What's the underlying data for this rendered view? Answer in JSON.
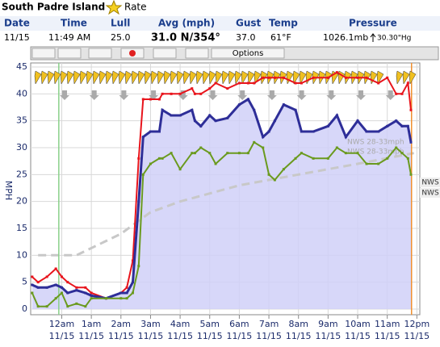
{
  "header": {
    "title": "South Padre Island",
    "rate": "Rate"
  },
  "table": {
    "headers": [
      "Date",
      "Time",
      "Lull",
      "Avg (mph)",
      "Gust",
      "Temp",
      "Pressure"
    ],
    "values": [
      "11/15",
      "11:49 AM",
      "25.0",
      "31.0 N/354°",
      "37.0",
      "61°F",
      "1026.1mb",
      "30.30\"Hg"
    ]
  },
  "toolbar": {
    "options": "Options"
  },
  "chart_data": {
    "type": "line",
    "ylabel": "MPH",
    "x": [
      -1.0,
      -0.8,
      -0.5,
      -0.2,
      0,
      0.2,
      0.5,
      0.8,
      1.0,
      1.5,
      2.0,
      2.2,
      2.4,
      2.6,
      2.75,
      3.0,
      3.3,
      3.4,
      3.7,
      4.0,
      4.4,
      4.5,
      4.7,
      5.0,
      5.2,
      5.6,
      6.0,
      6.3,
      6.5,
      6.8,
      7.0,
      7.2,
      7.5,
      7.9,
      8.1,
      8.5,
      9.0,
      9.3,
      9.6,
      10.0,
      10.3,
      10.7,
      11.0,
      11.3,
      11.5,
      11.7,
      11.8
    ],
    "series": [
      {
        "name": "Gust",
        "color": "#e8141c",
        "values": [
          6,
          5,
          6,
          7.5,
          6,
          5,
          4,
          4,
          3,
          2,
          3,
          4,
          9,
          28,
          39,
          39,
          39,
          40,
          40,
          40,
          41,
          40,
          40,
          41,
          42,
          41,
          42,
          42,
          42,
          43,
          43,
          43,
          43,
          42,
          42,
          43,
          43,
          44,
          43,
          43,
          43,
          42,
          43,
          40,
          40,
          42,
          37
        ]
      },
      {
        "name": "Avg",
        "color": "#2e2e98",
        "fill": "#d0d0f8",
        "values": [
          4.5,
          4,
          4,
          4.5,
          4,
          3,
          3.5,
          3,
          2.5,
          2,
          3,
          3,
          5,
          20,
          32,
          33,
          33,
          37,
          36,
          36,
          37,
          35,
          34,
          36,
          35,
          35.5,
          38,
          39,
          37,
          32,
          33,
          35,
          38,
          37,
          33,
          33,
          34,
          36,
          32,
          35,
          33,
          33,
          34,
          35,
          34,
          34,
          31
        ]
      },
      {
        "name": "Lull",
        "color": "#6a9a1e",
        "values": [
          3,
          0.5,
          0.5,
          2,
          3,
          0.5,
          1,
          0.5,
          2,
          2,
          2,
          2,
          3,
          8,
          25,
          27,
          28,
          28,
          29,
          26,
          29,
          29,
          30,
          29,
          27,
          29,
          29,
          29,
          31,
          30,
          25,
          24,
          26,
          28,
          29,
          28,
          28,
          30,
          29,
          29,
          27,
          27,
          28,
          30,
          29,
          28,
          25
        ]
      }
    ],
    "forecast": {
      "color": "#c8c8c8",
      "x": [
        -0.8,
        0.5,
        2,
        3,
        4,
        6,
        8,
        10,
        11.9
      ],
      "values": [
        10,
        10,
        14,
        18,
        20,
        23,
        25,
        27,
        29
      ]
    },
    "annotations": [
      "NWS 28-33mph",
      "NWS 28-33mph",
      "NWS",
      "NWS"
    ],
    "vlines": [
      {
        "x": -0.1,
        "color": "#8ad08a"
      },
      {
        "x": 11.82,
        "color": "#f09030"
      }
    ],
    "xlim": [
      -1.05,
      12.1
    ],
    "ylim": [
      0,
      45
    ],
    "yticks": [
      0,
      5,
      10,
      15,
      20,
      25,
      30,
      35,
      40,
      45
    ],
    "xticks": [
      {
        "value": 0,
        "label": "12am",
        "date": "11/15"
      },
      {
        "value": 1,
        "label": "1am",
        "date": "11/15"
      },
      {
        "value": 2,
        "label": "2am",
        "date": "11/15"
      },
      {
        "value": 3,
        "label": "3am",
        "date": "11/15"
      },
      {
        "value": 4,
        "label": "4am",
        "date": "11/15"
      },
      {
        "value": 5,
        "label": "5am",
        "date": "11/15"
      },
      {
        "value": 6,
        "label": "6am",
        "date": "11/15"
      },
      {
        "value": 7,
        "label": "7am",
        "date": "11/15"
      },
      {
        "value": 8,
        "label": "8am",
        "date": "11/15"
      },
      {
        "value": 9,
        "label": "9am",
        "date": "11/15"
      },
      {
        "value": 10,
        "label": "10am",
        "date": "11/15"
      },
      {
        "value": 11,
        "label": "11am",
        "date": "11/15"
      },
      {
        "value": 12,
        "label": "12pm",
        "date": "11/15"
      }
    ],
    "grid": true
  }
}
